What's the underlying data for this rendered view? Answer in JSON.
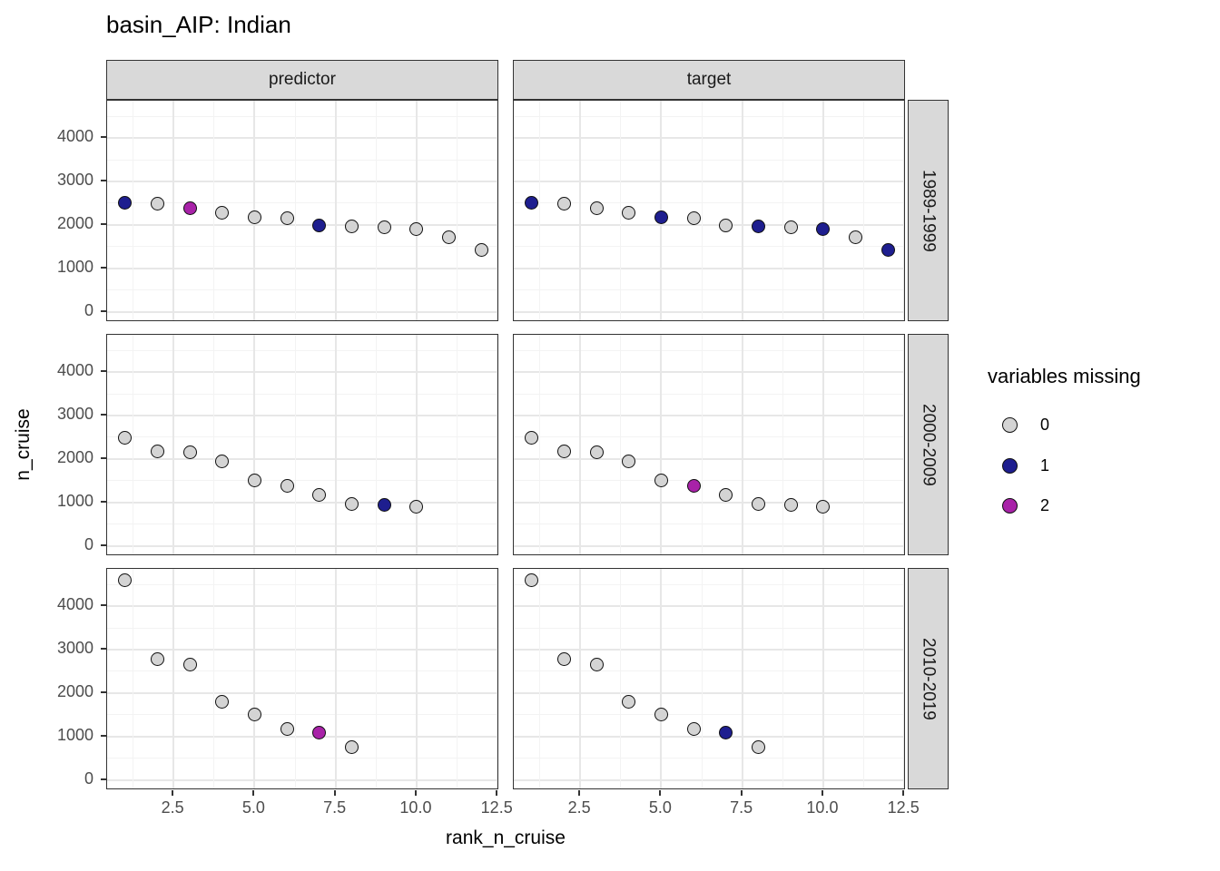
{
  "title": "basin_AIP: Indian",
  "facets": {
    "columns": [
      "predictor",
      "target"
    ],
    "rows": [
      "1989-1999",
      "2000-2009",
      "2010-2019"
    ]
  },
  "axes": {
    "x": {
      "label": "rank_n_cruise",
      "tick_labels": [
        "2.5",
        "5.0",
        "7.5",
        "10.0",
        "12.5"
      ],
      "tick_values": [
        2.5,
        5.0,
        7.5,
        10.0,
        12.5
      ],
      "minor_values": [
        1.25,
        3.75,
        6.25,
        8.75,
        11.25
      ],
      "domain": [
        0.45,
        12.55
      ]
    },
    "y": {
      "label": "n_cruise",
      "tick_labels": [
        "0",
        "1000",
        "2000",
        "3000",
        "4000"
      ],
      "tick_values": [
        0,
        1000,
        2000,
        3000,
        4000
      ],
      "minor_values": [
        500,
        1500,
        2500,
        3500,
        4500
      ],
      "domain": [
        -240,
        4860
      ]
    }
  },
  "legend": {
    "title": "variables missing",
    "entries": [
      {
        "label": "0",
        "color": "#D4D4D4"
      },
      {
        "label": "1",
        "color": "#1E1E8F"
      },
      {
        "label": "2",
        "color": "#A822A8"
      }
    ]
  },
  "colors": {
    "background": "#FFFFFF",
    "strip_fill": "#D9D9D9",
    "panel_border": "#333333",
    "grid_major": "#E7E7E7",
    "grid_minor": "#F3F3F3",
    "axis_text": "#4D4D4D",
    "point_stroke": "#101010"
  },
  "chart_data": {
    "type": "scatter",
    "title": "basin_AIP: Indian",
    "xlabel": "rank_n_cruise",
    "ylabel": "n_cruise",
    "legend_title": "variables missing",
    "legend_position": "right",
    "grid": true,
    "x_range": [
      0.45,
      12.55
    ],
    "y_range": [
      -240,
      4860
    ],
    "x_ticks": [
      2.5,
      5.0,
      7.5,
      10.0,
      12.5
    ],
    "y_ticks": [
      0,
      1000,
      2000,
      3000,
      4000
    ],
    "facets": [
      {
        "row": "1989-1999",
        "col": "predictor",
        "x": [
          1,
          2,
          3,
          4,
          5,
          6,
          7,
          8,
          9,
          10,
          11,
          12
        ],
        "y": [
          2510,
          2480,
          2390,
          2280,
          2170,
          2150,
          1990,
          1960,
          1940,
          1900,
          1720,
          1430
        ],
        "variables_missing": [
          1,
          0,
          2,
          0,
          0,
          0,
          1,
          0,
          0,
          0,
          0,
          0
        ]
      },
      {
        "row": "1989-1999",
        "col": "target",
        "x": [
          1,
          2,
          3,
          4,
          5,
          6,
          7,
          8,
          9,
          10,
          11,
          12
        ],
        "y": [
          2510,
          2480,
          2390,
          2280,
          2170,
          2150,
          1990,
          1960,
          1940,
          1900,
          1720,
          1430
        ],
        "variables_missing": [
          1,
          0,
          0,
          0,
          1,
          0,
          0,
          1,
          0,
          1,
          0,
          1
        ]
      },
      {
        "row": "2000-2009",
        "col": "predictor",
        "x": [
          1,
          2,
          3,
          4,
          5,
          6,
          7,
          8,
          9,
          10
        ],
        "y": [
          2480,
          2170,
          2150,
          1950,
          1500,
          1380,
          1170,
          970,
          950,
          890
        ],
        "variables_missing": [
          0,
          0,
          0,
          0,
          0,
          0,
          0,
          0,
          1,
          0
        ]
      },
      {
        "row": "2000-2009",
        "col": "target",
        "x": [
          1,
          2,
          3,
          4,
          5,
          6,
          7,
          8,
          9,
          10
        ],
        "y": [
          2480,
          2170,
          2150,
          1950,
          1500,
          1380,
          1170,
          970,
          950,
          890
        ],
        "variables_missing": [
          0,
          0,
          0,
          0,
          0,
          2,
          0,
          0,
          0,
          0
        ]
      },
      {
        "row": "2010-2019",
        "col": "predictor",
        "x": [
          1,
          2,
          3,
          4,
          5,
          6,
          7,
          8
        ],
        "y": [
          4600,
          2770,
          2650,
          1790,
          1500,
          1180,
          1080,
          760
        ],
        "variables_missing": [
          0,
          0,
          0,
          0,
          0,
          0,
          2,
          0
        ]
      },
      {
        "row": "2010-2019",
        "col": "target",
        "x": [
          1,
          2,
          3,
          4,
          5,
          6,
          7,
          8
        ],
        "y": [
          4600,
          2770,
          2650,
          1790,
          1500,
          1180,
          1080,
          760
        ],
        "variables_missing": [
          0,
          0,
          0,
          0,
          0,
          0,
          1,
          0
        ]
      }
    ]
  }
}
